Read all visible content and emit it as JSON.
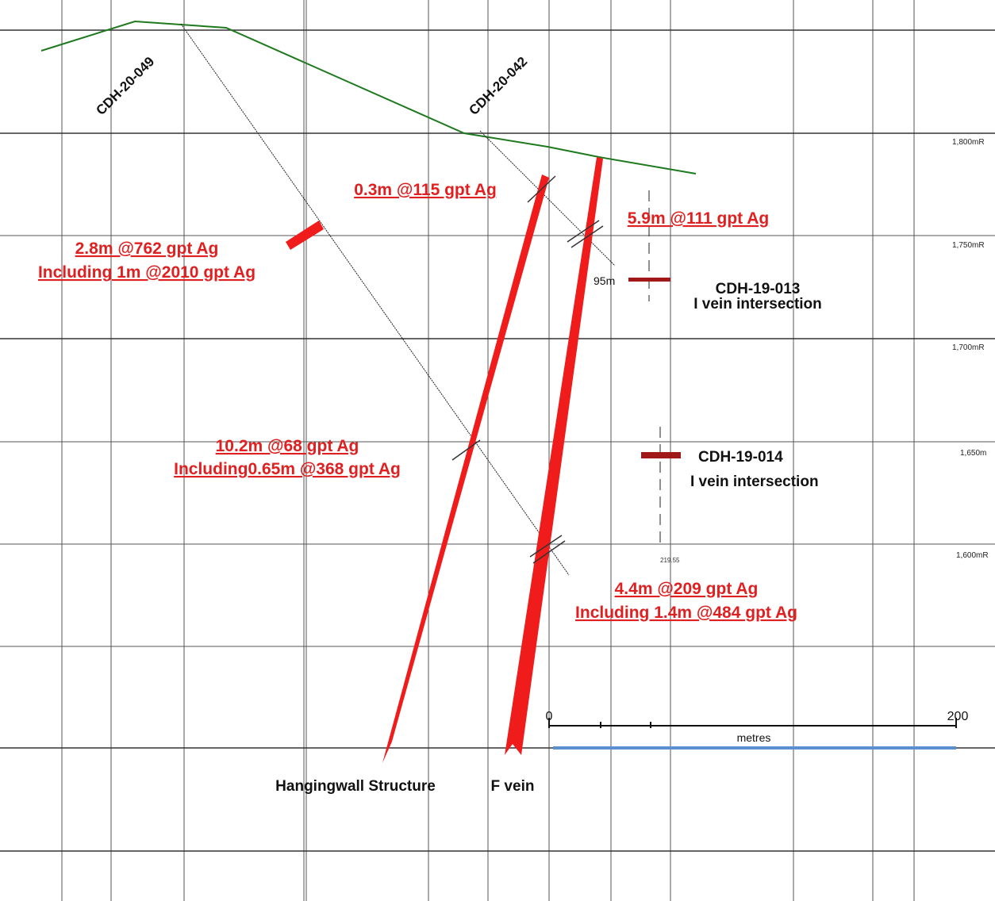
{
  "holes": [
    "CDH-20-049",
    "CDH-20-042"
  ],
  "elevations": [
    "1,800mR",
    "1,750mR",
    "1,700mR",
    "1,650m",
    "1,600mR"
  ],
  "intercepts": [
    {
      "lines": [
        "0.3m @115 gpt Ag"
      ]
    },
    {
      "lines": [
        "5.9m @111 gpt Ag"
      ]
    },
    {
      "lines": [
        "2.8m @762 gpt Ag",
        "Including 1m @2010 gpt Ag"
      ]
    },
    {
      "lines": [
        "10.2m @68 gpt Ag",
        "Including0.65m @368 gpt Ag"
      ]
    },
    {
      "lines": [
        "4.4m @209 gpt Ag",
        "Including 1.4m @484 gpt Ag"
      ]
    }
  ],
  "projected": [
    {
      "depth": "95m",
      "name": "CDH-19-013",
      "note": "I vein intersection"
    },
    {
      "depth": "219.55",
      "name": "CDH-19-014",
      "note": "I vein intersection"
    }
  ],
  "structures": [
    "Hangingwall Structure",
    "F vein"
  ],
  "scale": {
    "start": "0",
    "end": "200",
    "unit": "metres"
  }
}
